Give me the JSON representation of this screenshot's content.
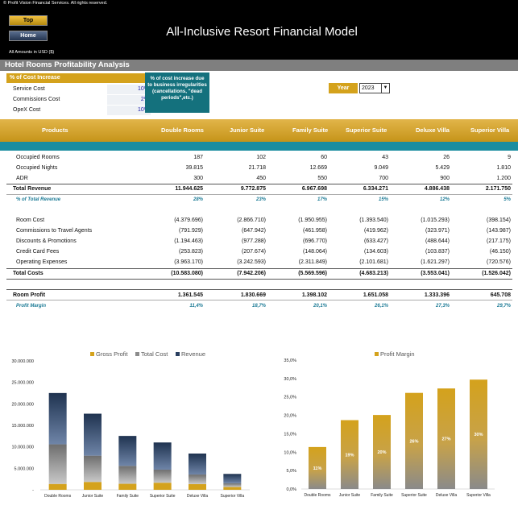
{
  "header": {
    "copyright": "© Profit Vision Financial Services. All rights reserved.",
    "top_label": "Top",
    "home_label": "Home",
    "title": "All-Inclusive Resort Financial Model",
    "amounts": "All Amounts in  USD ($)"
  },
  "section_title": "Hotel Rooms Profitability Analysis",
  "cost_increase": {
    "heading": "% of Cost Increase",
    "rows": [
      {
        "label": "Service Cost",
        "value": "10%"
      },
      {
        "label": "Commissions Cost",
        "value": "2%"
      },
      {
        "label": "OpeX Cost",
        "value": "10%"
      }
    ],
    "note": "% of cost increase due to business irregularities (cancellations, \"dead periods\",etc.)"
  },
  "year_select": {
    "label": "Year",
    "value": "2023"
  },
  "table": {
    "headers": [
      "Products",
      "Double Rooms",
      "Junior Suite",
      "Family Suite",
      "Superior Suite",
      "Deluxe Villa",
      "Superior Villa"
    ],
    "rows": [
      {
        "label": "Occupied Rooms",
        "values": [
          "187",
          "102",
          "60",
          "43",
          "26",
          "9"
        ]
      },
      {
        "label": "Occupied Nights",
        "values": [
          "39.815",
          "21.718",
          "12.669",
          "9.049",
          "5.429",
          "1.810"
        ]
      },
      {
        "label": "ADR",
        "values": [
          "300",
          "450",
          "550",
          "700",
          "900",
          "1.200"
        ]
      },
      {
        "label": "Total Revenue",
        "values": [
          "11.944.625",
          "9.772.875",
          "6.967.698",
          "6.334.271",
          "4.886.438",
          "2.171.750"
        ]
      },
      {
        "label": "% of Total Revenue",
        "values": [
          "28%",
          "23%",
          "17%",
          "15%",
          "12%",
          "5%"
        ]
      },
      {
        "label": "Room Cost",
        "values": [
          "(4.379.696)",
          "(2.866.710)",
          "(1.950.955)",
          "(1.393.540)",
          "(1.015.293)",
          "(398.154)"
        ]
      },
      {
        "label": "Commissions to Travel Agents",
        "values": [
          "(791.929)",
          "(647.942)",
          "(461.958)",
          "(419.962)",
          "(323.971)",
          "(143.987)"
        ]
      },
      {
        "label": "Discounts & Promotions",
        "values": [
          "(1.194.463)",
          "(977.288)",
          "(696.770)",
          "(633.427)",
          "(488.644)",
          "(217.175)"
        ]
      },
      {
        "label": "Credit Card Fees",
        "values": [
          "(253.823)",
          "(207.674)",
          "(148.064)",
          "(134.603)",
          "(103.837)",
          "(46.150)"
        ]
      },
      {
        "label": "Operating Expenses",
        "values": [
          "(3.963.170)",
          "(3.242.593)",
          "(2.311.849)",
          "(2.101.681)",
          "(1.621.297)",
          "(720.576)"
        ]
      },
      {
        "label": "Total Costs",
        "values": [
          "(10.583.080)",
          "(7.942.206)",
          "(5.569.596)",
          "(4.683.213)",
          "(3.553.041)",
          "(1.526.042)"
        ]
      },
      {
        "label": "Room Profit",
        "values": [
          "1.361.545",
          "1.830.669",
          "1.398.102",
          "1.651.058",
          "1.333.396",
          "645.708"
        ]
      },
      {
        "label": "Profit Margin",
        "values": [
          "11,4%",
          "18,7%",
          "20,1%",
          "26,1%",
          "27,3%",
          "29,7%"
        ]
      }
    ]
  },
  "colors": {
    "gold": "#d4a21c",
    "teal": "#14717d",
    "gray": "#7f7f7f",
    "navy": "#1f3350"
  },
  "chart_data": [
    {
      "type": "bar",
      "categories": [
        "Double Rooms",
        "Junior Suite",
        "Family Suite",
        "Superior Suite",
        "Deluxe Villa",
        "Superior Villa"
      ],
      "series": [
        {
          "name": "Gross Profit",
          "values": [
            1361545,
            1830669,
            1398102,
            1651058,
            1333396,
            645708
          ]
        },
        {
          "name": "Total Cost",
          "values": [
            10583080,
            7942206,
            5569596,
            4683213,
            3553041,
            1526042
          ]
        },
        {
          "name": "Revenue",
          "values": [
            11944625,
            9772875,
            6967698,
            6334271,
            4886438,
            2171750
          ]
        }
      ],
      "stacked": true,
      "ylim": [
        0,
        30000000
      ],
      "yticks": [
        "30.000.000",
        "25.000.000",
        "20.000.000",
        "15.000.000",
        "10.000.000",
        "5.000.000",
        "-"
      ],
      "legend": "top"
    },
    {
      "type": "bar",
      "categories": [
        "Double Rooms",
        "Junior Suite",
        "Family Suite",
        "Superior Suite",
        "Deluxe Villa",
        "Superior Villa"
      ],
      "series": [
        {
          "name": "Profit Margin",
          "values": [
            11.4,
            18.7,
            20.1,
            26.1,
            27.3,
            29.7
          ]
        }
      ],
      "data_labels": [
        "11%",
        "19%",
        "20%",
        "26%",
        "27%",
        "30%"
      ],
      "ylim": [
        0,
        35
      ],
      "yticks": [
        "35,0%",
        "30,0%",
        "25,0%",
        "20,0%",
        "15,0%",
        "10,0%",
        "5,0%",
        "0,0%"
      ],
      "legend": "top"
    }
  ]
}
